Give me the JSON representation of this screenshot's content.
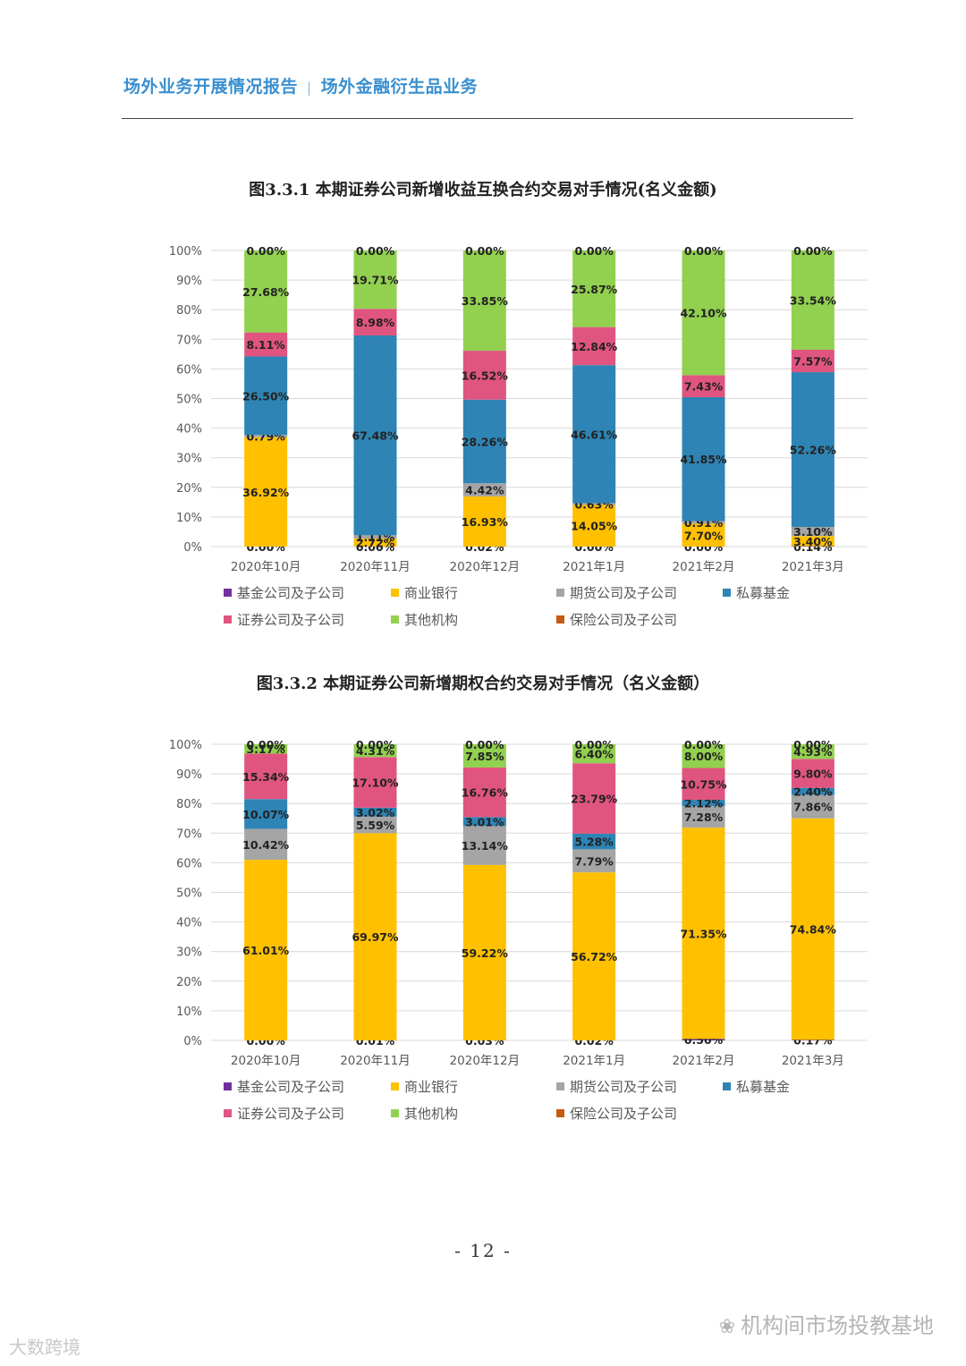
{
  "header": {
    "left": "场外业务开展情况报告",
    "separator": "|",
    "right": "场外金融衍生品业务"
  },
  "footer": {
    "page_number": "- 12 -",
    "watermark_right": "机构间市场投教基地",
    "watermark_left": "大数跨境"
  },
  "chart_data": [
    {
      "type": "bar",
      "stacked": true,
      "title": "图3.3.1 本期证券公司新增收益互换合约交易对手情况(名义金额)",
      "categories": [
        "2020年10月",
        "2020年11月",
        "2020年12月",
        "2021年1月",
        "2021年2月",
        "2021年3月"
      ],
      "yticks": [
        "0%",
        "10%",
        "20%",
        "30%",
        "40%",
        "50%",
        "60%",
        "70%",
        "80%",
        "90%",
        "100%"
      ],
      "ylim": [
        0,
        100
      ],
      "grid": true,
      "legend_position": "bottom",
      "series": [
        {
          "name": "基金公司及子公司",
          "color": "#7030a0",
          "values": [
            0.0,
            0.0,
            0.02,
            0.0,
            0.0,
            0.14
          ],
          "labels": [
            "0.00%",
            "0.00%",
            "0.02%",
            "0.00%",
            "0.00%",
            "0.14%"
          ]
        },
        {
          "name": "商业银行",
          "color": "#ffc000",
          "values": [
            36.92,
            2.72,
            16.93,
            14.05,
            7.7,
            3.4
          ],
          "labels": [
            "36.92%",
            "2.72%",
            "16.93%",
            "14.05%",
            "7.70%",
            "3.40%"
          ]
        },
        {
          "name": "期货公司及子公司",
          "color": "#a5a5a5",
          "values": [
            0.79,
            1.11,
            4.42,
            0.63,
            0.91,
            3.1
          ],
          "labels": [
            "0.79%",
            "1.11%",
            "4.42%",
            "0.63%",
            "0.91%",
            "3.10%"
          ]
        },
        {
          "name": "私募基金",
          "color": "#2e84b4",
          "values": [
            26.5,
            67.48,
            28.26,
            46.61,
            41.85,
            52.26
          ],
          "labels": [
            "26.50%",
            "67.48%",
            "28.26%",
            "46.61%",
            "41.85%",
            "52.26%"
          ]
        },
        {
          "name": "证券公司及子公司",
          "color": "#e05580",
          "values": [
            8.11,
            8.98,
            16.52,
            12.84,
            7.43,
            7.57
          ],
          "labels": [
            "8.11%",
            "8.98%",
            "16.52%",
            "12.84%",
            "7.43%",
            "7.57%"
          ]
        },
        {
          "name": "其他机构",
          "color": "#92d050",
          "values": [
            27.68,
            19.71,
            33.85,
            25.87,
            42.1,
            33.54
          ],
          "labels": [
            "27.68%",
            "19.71%",
            "33.85%",
            "25.87%",
            "42.10%",
            "33.54%"
          ]
        },
        {
          "name": "保险公司及子公司",
          "color": "#c55a11",
          "values": [
            0.0,
            0.0,
            0.0,
            0.0,
            0.0,
            0.0
          ],
          "labels": [
            "0.00%",
            "0.00%",
            "0.00%",
            "0.00%",
            "0.00%",
            "0.00%"
          ]
        }
      ]
    },
    {
      "type": "bar",
      "stacked": true,
      "title": "图3.3.2 本期证券公司新增期权合约交易对手情况（名义金额）",
      "categories": [
        "2020年10月",
        "2020年11月",
        "2020年12月",
        "2021年1月",
        "2021年2月",
        "2021年3月"
      ],
      "yticks": [
        "0%",
        "10%",
        "20%",
        "30%",
        "40%",
        "50%",
        "60%",
        "70%",
        "80%",
        "90%",
        "100%"
      ],
      "ylim": [
        0,
        100
      ],
      "grid": true,
      "legend_position": "bottom",
      "series": [
        {
          "name": "基金公司及子公司",
          "color": "#7030a0",
          "values": [
            0.0,
            0.01,
            0.03,
            0.02,
            0.5,
            0.17
          ],
          "labels": [
            "0.00%",
            "0.01%",
            "0.03%",
            "0.02%",
            "0.50%",
            "0.17%"
          ]
        },
        {
          "name": "商业银行",
          "color": "#ffc000",
          "values": [
            61.01,
            69.97,
            59.22,
            56.72,
            71.35,
            74.84
          ],
          "labels": [
            "61.01%",
            "69.97%",
            "59.22%",
            "56.72%",
            "71.35%",
            "74.84%"
          ]
        },
        {
          "name": "期货公司及子公司",
          "color": "#a5a5a5",
          "values": [
            10.42,
            5.59,
            13.14,
            7.79,
            7.28,
            7.86
          ],
          "labels": [
            "10.42%",
            "5.59%",
            "13.14%",
            "7.79%",
            "7.28%",
            "7.86%"
          ]
        },
        {
          "name": "私募基金",
          "color": "#2e84b4",
          "values": [
            10.07,
            3.02,
            3.01,
            5.28,
            2.12,
            2.4
          ],
          "labels": [
            "10.07%",
            "3.02%",
            "3.01%",
            "5.28%",
            "2.12%",
            "2.40%"
          ]
        },
        {
          "name": "证券公司及子公司",
          "color": "#e05580",
          "values": [
            15.34,
            17.1,
            16.76,
            23.79,
            10.75,
            9.8
          ],
          "labels": [
            "15.34%",
            "17.10%",
            "16.76%",
            "23.79%",
            "10.75%",
            "9.80%"
          ]
        },
        {
          "name": "其他机构",
          "color": "#92d050",
          "values": [
            3.17,
            4.31,
            7.85,
            6.4,
            8.0,
            4.93
          ],
          "labels": [
            "3.17%",
            "4.31%",
            "7.85%",
            "6.40%",
            "8.00%",
            "4.93%"
          ]
        },
        {
          "name": "保险公司及子公司",
          "color": "#c55a11",
          "values": [
            0.0,
            0.0,
            0.0,
            0.0,
            0.0,
            0.0
          ],
          "labels": [
            "0.00%",
            "0.00%",
            "0.00%",
            "0.00%",
            "0.00%",
            "0.00%"
          ]
        }
      ]
    }
  ]
}
